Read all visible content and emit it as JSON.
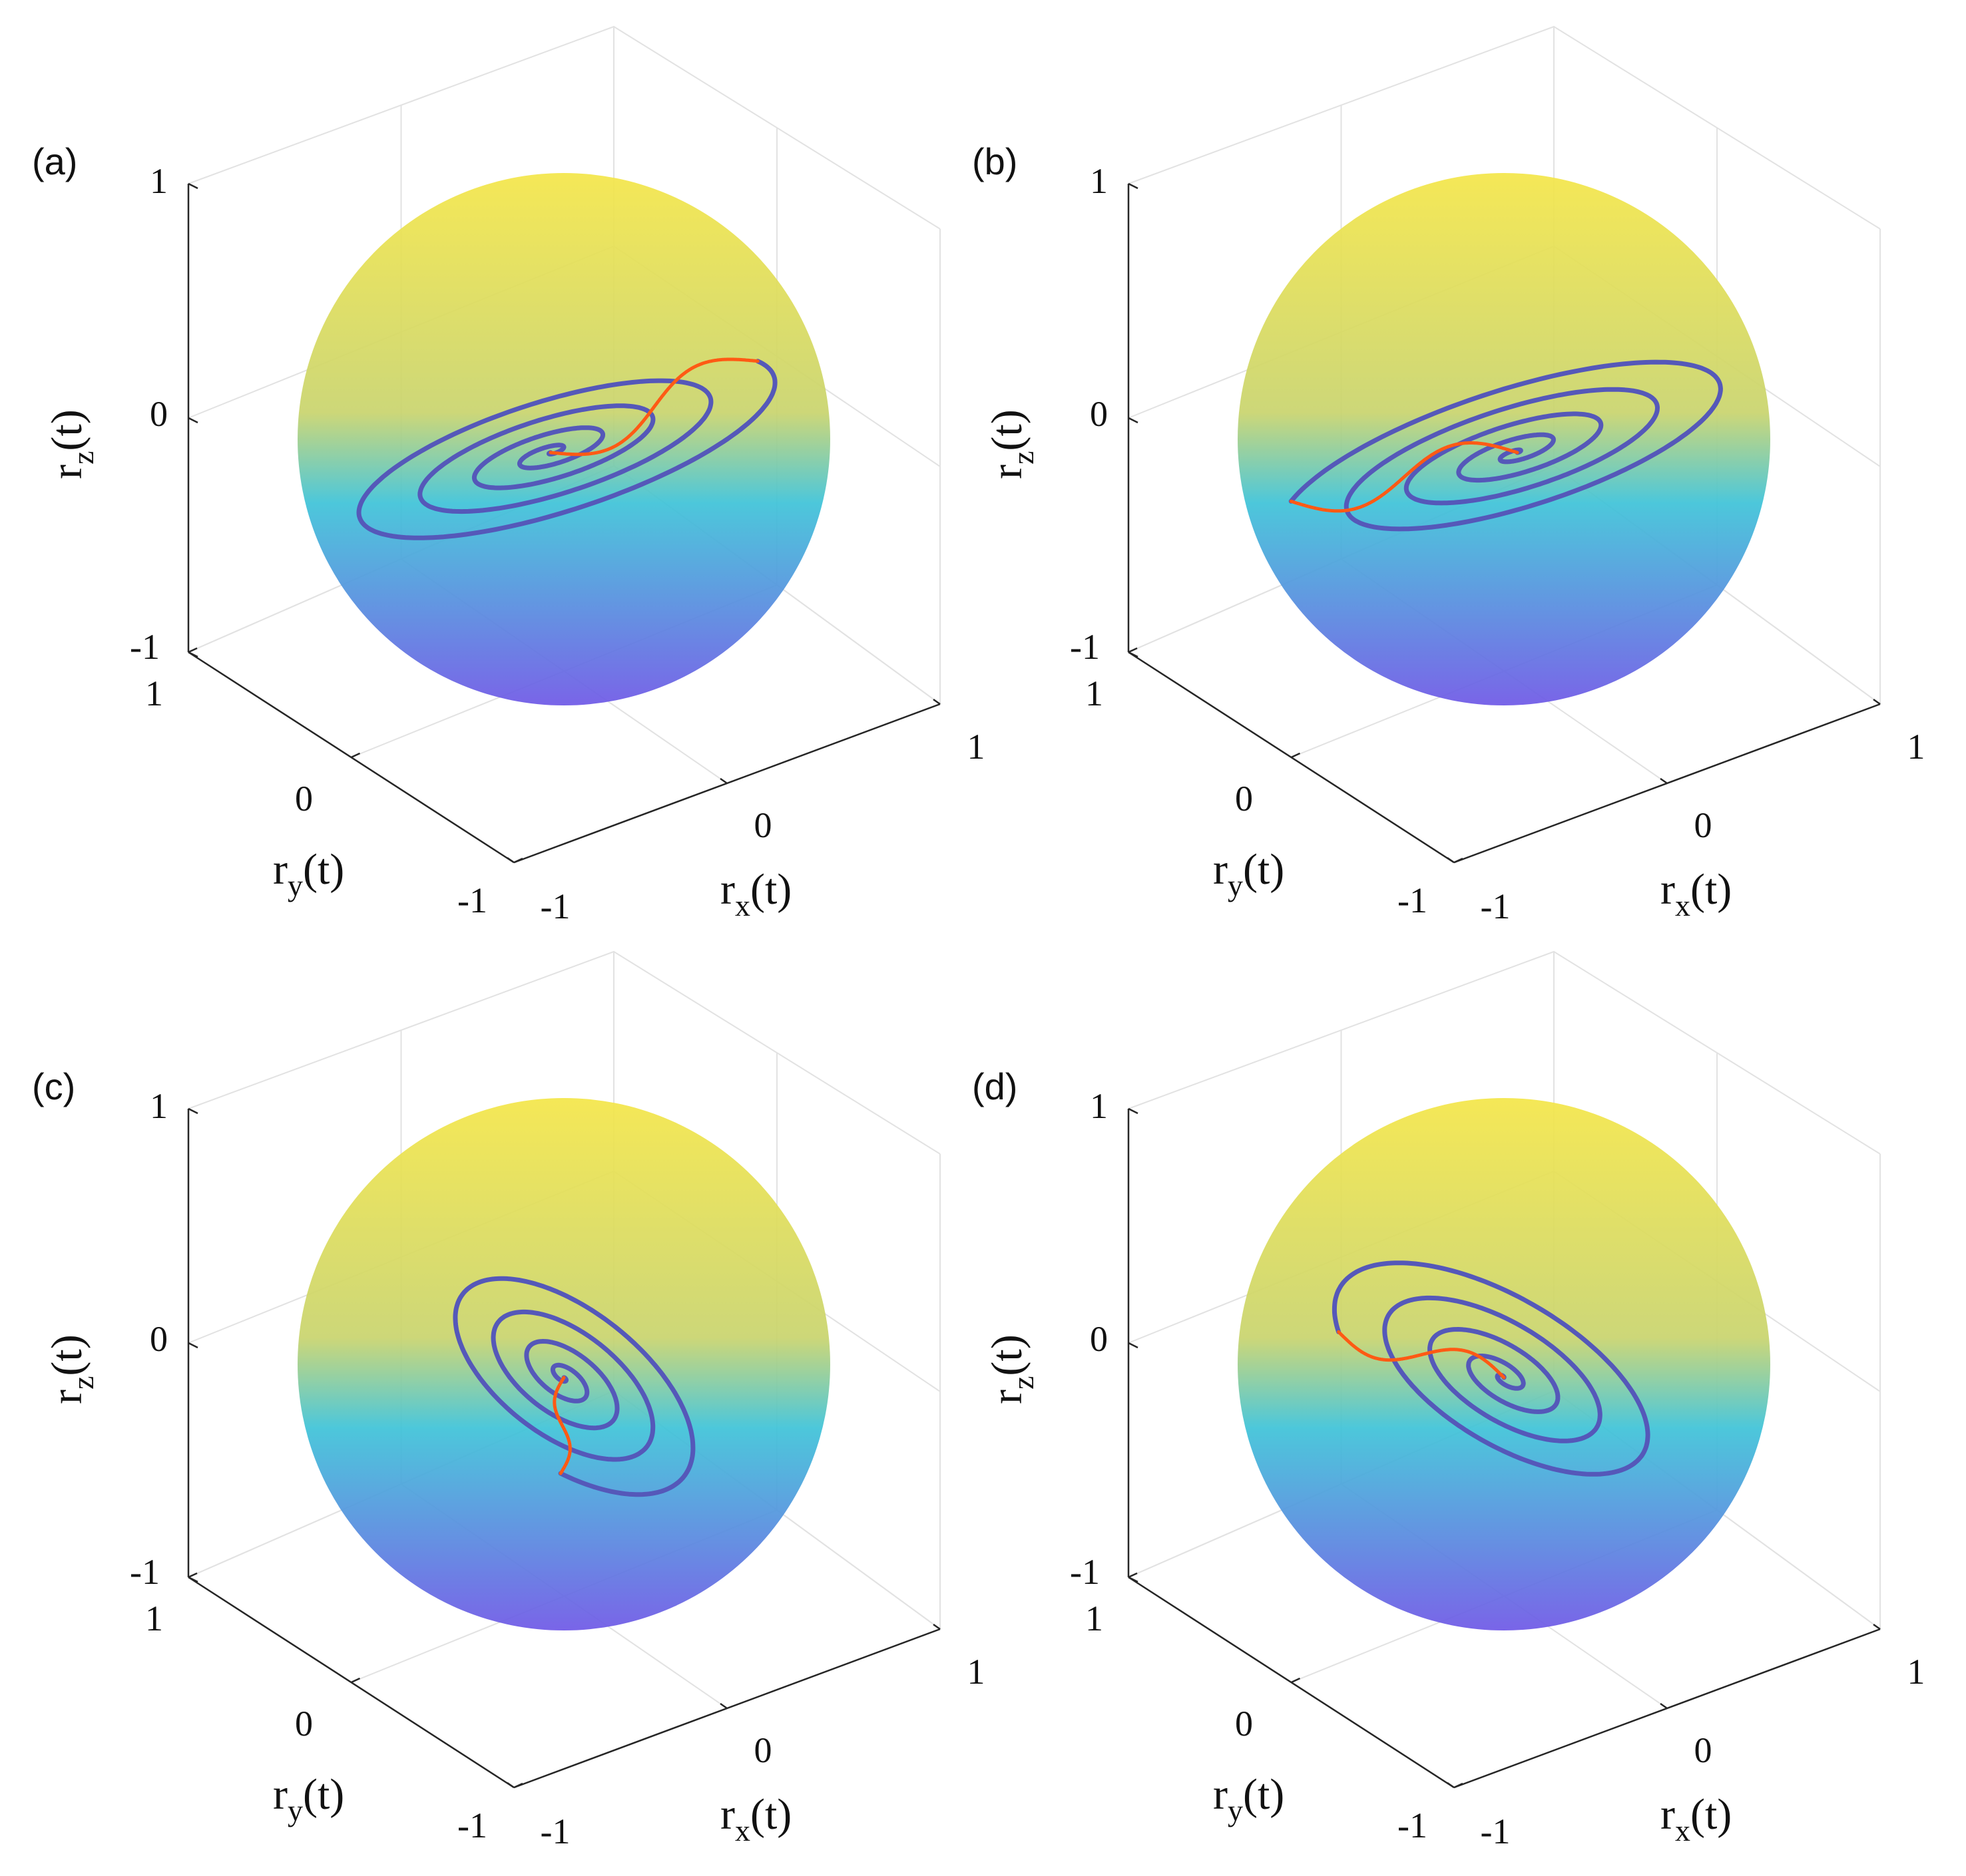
{
  "chart_data": [
    {
      "type": "3d-trajectory-on-sphere",
      "panel_label": "(a)",
      "xlabel": "r_x(t)",
      "ylabel": "r_y(t)",
      "zlabel": "r_z(t)",
      "x_ticks": [
        "-1",
        "0",
        "1"
      ],
      "y_ticks": [
        "-1",
        "0",
        "1"
      ],
      "z_ticks": [
        "-1",
        "0",
        "1"
      ],
      "xlim": [
        -1,
        1
      ],
      "ylim": [
        -1,
        1
      ],
      "zlim": [
        -1,
        1
      ],
      "grid": true,
      "spiral": {
        "center": [
          -0.05,
          -0.05
        ],
        "start_angle_deg": -20,
        "turns": 4.6,
        "start_radius": 0.9,
        "tilt_deg": 18,
        "aspect": 0.28,
        "direction": 1
      },
      "branch_end": [
        0.85,
        -0.08
      ],
      "branch_end_z": 0.1
    },
    {
      "type": "3d-trajectory-on-sphere",
      "panel_label": "(b)",
      "xlabel": "r_x(t)",
      "ylabel": "r_y(t)",
      "zlabel": "r_z(t)",
      "x_ticks": [
        "-1",
        "0",
        "1"
      ],
      "y_ticks": [
        "-1",
        "0",
        "1"
      ],
      "z_ticks": [
        "-1",
        "0",
        "1"
      ],
      "xlim": [
        -1,
        1
      ],
      "ylim": [
        -1,
        1
      ],
      "zlim": [
        -1,
        1
      ],
      "grid": true,
      "spiral": {
        "center": [
          0.05,
          -0.05
        ],
        "start_angle_deg": 200,
        "turns": 4.6,
        "start_radius": 0.92,
        "tilt_deg": 18,
        "aspect": 0.28,
        "direction": 1
      },
      "branch_end": [
        -0.85,
        -0.4
      ],
      "branch_end_z": -0.3
    },
    {
      "type": "3d-trajectory-on-sphere",
      "panel_label": "(c)",
      "xlabel": "r_x(t)",
      "ylabel": "r_y(t)",
      "zlabel": "r_z(t)",
      "x_ticks": [
        "-1",
        "0",
        "1"
      ],
      "y_ticks": [
        "-1",
        "0",
        "1"
      ],
      "z_ticks": [
        "-1",
        "0",
        "1"
      ],
      "xlim": [
        -1,
        1
      ],
      "ylim": [
        -1,
        1
      ],
      "zlim": [
        -1,
        1
      ],
      "grid": true,
      "spiral": {
        "center": [
          0.0,
          -0.05
        ],
        "start_angle_deg": 70,
        "turns": 4.4,
        "start_radius": 0.62,
        "tilt_deg": -38,
        "aspect": 0.5,
        "direction": -1
      },
      "branch_end": [
        0.6,
        -0.68
      ],
      "branch_end_z": -0.55
    },
    {
      "type": "3d-trajectory-on-sphere",
      "panel_label": "(d)",
      "xlabel": "r_x(t)",
      "ylabel": "r_y(t)",
      "zlabel": "r_z(t)",
      "x_ticks": [
        "-1",
        "0",
        "1"
      ],
      "y_ticks": [
        "-1",
        "0",
        "1"
      ],
      "z_ticks": [
        "-1",
        "0",
        "1"
      ],
      "xlim": [
        -1,
        1
      ],
      "ylim": [
        -1,
        1
      ],
      "zlim": [
        -1,
        1
      ],
      "grid": true,
      "spiral": {
        "center": [
          0.0,
          -0.05
        ],
        "start_angle_deg": 150,
        "turns": 4.4,
        "start_radius": 0.72,
        "tilt_deg": -30,
        "aspect": 0.45,
        "direction": 1
      },
      "branch_end": [
        -0.6,
        0.42
      ],
      "branch_end_z": 0.5
    }
  ],
  "colors": {
    "sphere_top": "#f4e64a",
    "sphere_mid": "#3fc3d8",
    "sphere_bottom": "#6f59e6",
    "spiral": "#5558b9",
    "branch": "#ff5a14",
    "axis": "#262626",
    "grid": "#e2e2e2"
  }
}
